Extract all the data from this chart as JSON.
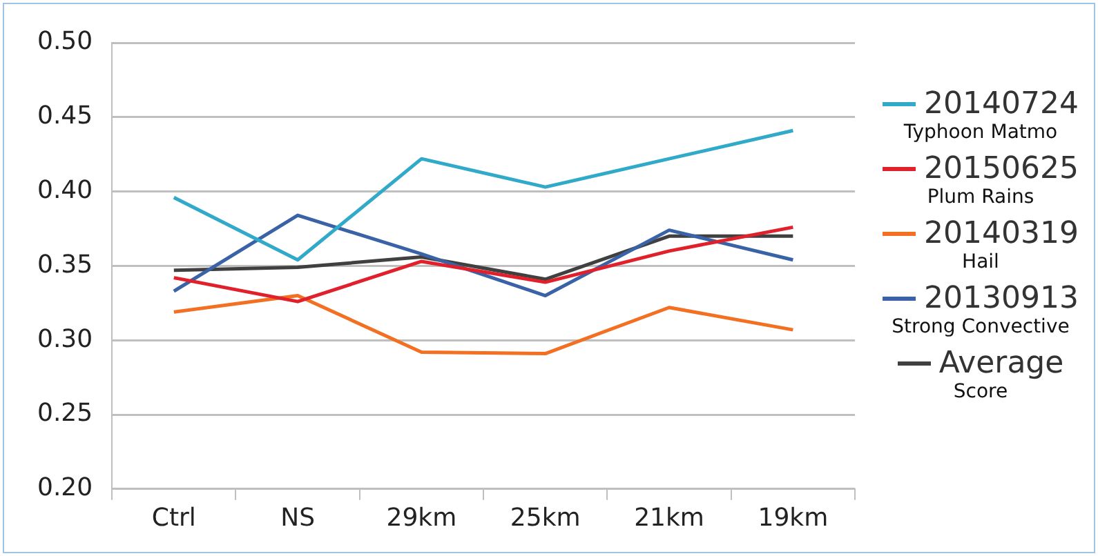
{
  "chart_data": {
    "type": "line",
    "categories": [
      "Ctrl",
      "NS",
      "29km",
      "25km",
      "21km",
      "19km"
    ],
    "series": [
      {
        "name": "20140724\nTyphoon Matmo",
        "color": "#31a9c8",
        "values": [
          0.396,
          0.354,
          0.422,
          0.403,
          0.422,
          0.441
        ]
      },
      {
        "name": "20150625\nPlum Rains",
        "color": "#e0202b",
        "values": [
          0.342,
          0.326,
          0.353,
          0.339,
          0.36,
          0.376
        ]
      },
      {
        "name": "20140319\nHail",
        "color": "#f36f21",
        "values": [
          0.319,
          0.33,
          0.292,
          0.291,
          0.322,
          0.307
        ]
      },
      {
        "name": "20130913\nStrong Convective",
        "color": "#3a62a7",
        "values": [
          0.333,
          0.384,
          0.358,
          0.33,
          0.374,
          0.354
        ]
      },
      {
        "name": "Average\nScore",
        "color": "#404040",
        "values": [
          0.347,
          0.349,
          0.356,
          0.341,
          0.37,
          0.37
        ]
      }
    ],
    "ylim": [
      0.2,
      0.5
    ],
    "yticks": [
      {
        "value": 0.2,
        "label": "0.20"
      },
      {
        "value": 0.25,
        "label": "0.25"
      },
      {
        "value": 0.3,
        "label": "0.30"
      },
      {
        "value": 0.35,
        "label": "0.35"
      },
      {
        "value": 0.4,
        "label": "0.40"
      },
      {
        "value": 0.45,
        "label": "0.45"
      },
      {
        "value": 0.5,
        "label": "0.50"
      }
    ],
    "grid": "y",
    "legend": "right",
    "marker": "none",
    "line_style": "solid"
  }
}
